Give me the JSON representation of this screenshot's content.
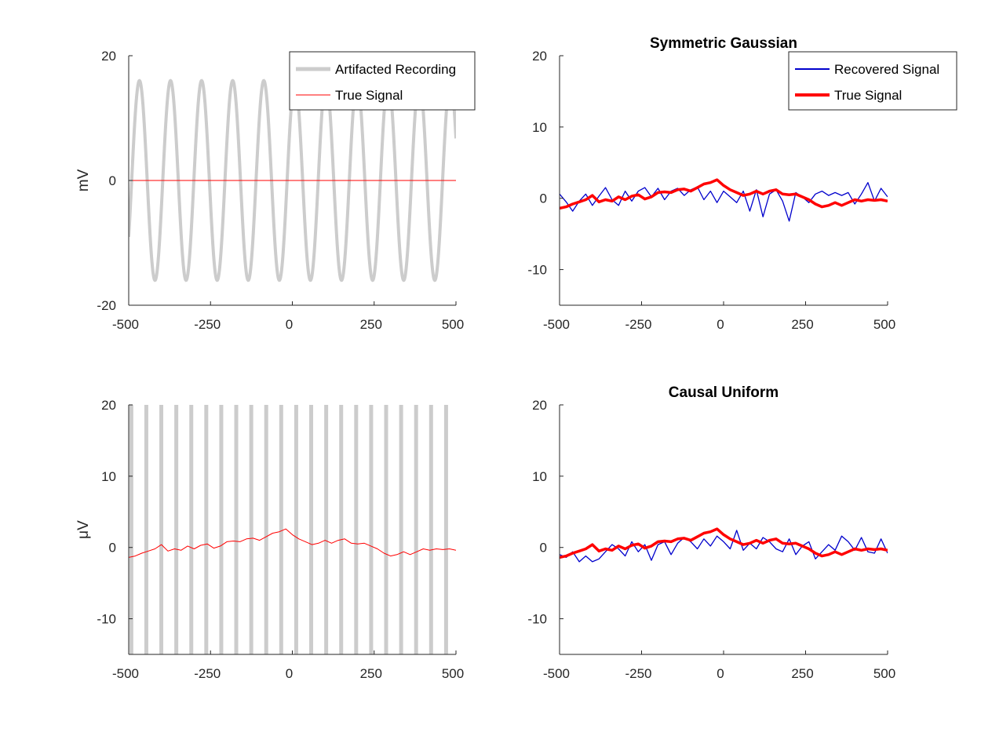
{
  "chart_data": [
    {
      "type": "line",
      "title": "",
      "ylabel": "mV",
      "xlim": [
        -500,
        500
      ],
      "ylim": [
        -20,
        20
      ],
      "xticks": [
        "-500",
        "-250",
        "0",
        "250",
        "500"
      ],
      "yticks": [
        "-20",
        "0",
        "20"
      ],
      "legend": "top-right",
      "series": [
        {
          "name": "Artifacted Recording",
          "color": "#cccccc",
          "kind": "sine",
          "amplitude": 16,
          "period": 95,
          "phase": -500
        },
        {
          "name": "True Signal",
          "color": "#ff0000",
          "kind": "flat",
          "value": 0
        }
      ]
    },
    {
      "type": "line",
      "title": "Symmetric Gaussian",
      "ylabel": "",
      "xlim": [
        -500,
        500
      ],
      "ylim": [
        -15,
        20
      ],
      "xticks": [
        "-500",
        "-250",
        "0",
        "250",
        "500"
      ],
      "yticks": [
        "-10",
        "0",
        "10",
        "20"
      ],
      "legend": "top-right",
      "series": [
        {
          "name": "Recovered Signal",
          "color": "#0000cc",
          "x": [
            -500,
            -480,
            -460,
            -440,
            -420,
            -400,
            -380,
            -360,
            -340,
            -320,
            -300,
            -280,
            -260,
            -240,
            -220,
            -200,
            -180,
            -160,
            -140,
            -120,
            -100,
            -80,
            -60,
            -40,
            -20,
            0,
            20,
            40,
            60,
            80,
            100,
            120,
            140,
            160,
            180,
            200,
            220,
            240,
            260,
            280,
            300,
            320,
            340,
            360,
            380,
            400,
            420,
            440,
            460,
            480,
            500
          ],
          "y": [
            0.6,
            -0.5,
            -1.8,
            -0.4,
            0.6,
            -1.0,
            0.3,
            1.5,
            -0.2,
            -1.0,
            1.0,
            -0.4,
            1.0,
            1.5,
            0.2,
            1.4,
            -0.2,
            1.0,
            1.4,
            0.4,
            1.2,
            1.6,
            -0.2,
            1.0,
            -0.6,
            1.0,
            0.2,
            -0.6,
            1.0,
            -1.8,
            1.2,
            -2.6,
            0.6,
            1.2,
            -0.4,
            -3.2,
            0.8,
            0.2,
            -0.6,
            0.6,
            1.0,
            0.4,
            0.8,
            0.4,
            0.8,
            -0.8,
            0.6,
            2.2,
            -0.4,
            1.4,
            0.2
          ]
        },
        {
          "name": "True Signal",
          "color": "#ff0000",
          "x": [
            -500,
            -480,
            -460,
            -440,
            -420,
            -400,
            -380,
            -360,
            -340,
            -320,
            -300,
            -280,
            -260,
            -240,
            -220,
            -200,
            -180,
            -160,
            -140,
            -120,
            -100,
            -80,
            -60,
            -40,
            -20,
            0,
            20,
            40,
            60,
            80,
            100,
            120,
            140,
            160,
            180,
            200,
            220,
            240,
            260,
            280,
            300,
            320,
            340,
            360,
            380,
            400,
            420,
            440,
            460,
            480,
            500
          ],
          "y": [
            -1.4,
            -1.2,
            -0.8,
            -0.5,
            -0.2,
            0.4,
            -0.5,
            -0.2,
            -0.4,
            0.2,
            -0.2,
            0.3,
            0.5,
            -0.1,
            0.2,
            0.8,
            0.9,
            0.8,
            1.2,
            1.3,
            1.0,
            1.5,
            2.0,
            2.2,
            2.6,
            1.8,
            1.2,
            0.8,
            0.4,
            0.6,
            1.0,
            0.6,
            1.0,
            1.2,
            0.6,
            0.5,
            0.6,
            0.2,
            -0.2,
            -0.8,
            -1.2,
            -1.0,
            -0.6,
            -1.0,
            -0.6,
            -0.2,
            -0.4,
            -0.2,
            -0.3,
            -0.2,
            -0.4
          ]
        }
      ]
    },
    {
      "type": "line",
      "title": "",
      "ylabel": "μV",
      "xlim": [
        -500,
        500
      ],
      "ylim": [
        -15,
        20
      ],
      "xticks": [
        "-500",
        "-250",
        "0",
        "250",
        "500"
      ],
      "yticks": [
        "-10",
        "0",
        "10",
        "20"
      ],
      "legend": "none",
      "series": [
        {
          "name": "Artifacted Recording",
          "color": "#cccccc",
          "kind": "spikes",
          "start": -492,
          "step": 45.8,
          "count": 22
        },
        {
          "name": "True Signal",
          "color": "#ff0000",
          "x": [
            -500,
            -480,
            -460,
            -440,
            -420,
            -400,
            -380,
            -360,
            -340,
            -320,
            -300,
            -280,
            -260,
            -240,
            -220,
            -200,
            -180,
            -160,
            -140,
            -120,
            -100,
            -80,
            -60,
            -40,
            -20,
            0,
            20,
            40,
            60,
            80,
            100,
            120,
            140,
            160,
            180,
            200,
            220,
            240,
            260,
            280,
            300,
            320,
            340,
            360,
            380,
            400,
            420,
            440,
            460,
            480,
            500
          ],
          "y": [
            -1.4,
            -1.2,
            -0.8,
            -0.5,
            -0.2,
            0.4,
            -0.5,
            -0.2,
            -0.4,
            0.2,
            -0.2,
            0.3,
            0.5,
            -0.1,
            0.2,
            0.8,
            0.9,
            0.8,
            1.2,
            1.3,
            1.0,
            1.5,
            2.0,
            2.2,
            2.6,
            1.8,
            1.2,
            0.8,
            0.4,
            0.6,
            1.0,
            0.6,
            1.0,
            1.2,
            0.6,
            0.5,
            0.6,
            0.2,
            -0.2,
            -0.8,
            -1.2,
            -1.0,
            -0.6,
            -1.0,
            -0.6,
            -0.2,
            -0.4,
            -0.2,
            -0.3,
            -0.2,
            -0.4
          ]
        }
      ]
    },
    {
      "type": "line",
      "title": "Causal Uniform",
      "ylabel": "",
      "xlim": [
        -500,
        500
      ],
      "ylim": [
        -15,
        20
      ],
      "xticks": [
        "-500",
        "-250",
        "0",
        "250",
        "500"
      ],
      "yticks": [
        "-10",
        "0",
        "10",
        "20"
      ],
      "legend": "none",
      "series": [
        {
          "name": "Recovered Signal",
          "color": "#0000cc",
          "x": [
            -500,
            -480,
            -460,
            -440,
            -420,
            -400,
            -380,
            -360,
            -340,
            -320,
            -300,
            -280,
            -260,
            -240,
            -220,
            -200,
            -180,
            -160,
            -140,
            -120,
            -100,
            -80,
            -60,
            -40,
            -20,
            0,
            20,
            40,
            60,
            80,
            100,
            120,
            140,
            160,
            180,
            200,
            220,
            240,
            260,
            280,
            300,
            320,
            340,
            360,
            380,
            400,
            420,
            440,
            460,
            480,
            500
          ],
          "y": [
            -1.0,
            -1.4,
            -0.6,
            -2.0,
            -1.2,
            -2.0,
            -1.6,
            -0.6,
            0.4,
            -0.2,
            -1.2,
            0.8,
            -0.6,
            0.4,
            -1.8,
            0.4,
            0.8,
            -1.0,
            0.6,
            1.4,
            0.8,
            -0.2,
            1.2,
            0.2,
            1.6,
            0.8,
            -0.2,
            2.4,
            -0.4,
            0.6,
            -0.2,
            1.4,
            0.8,
            -0.2,
            -0.6,
            1.2,
            -1.0,
            0.2,
            0.8,
            -1.6,
            -0.6,
            0.4,
            -0.4,
            1.6,
            0.8,
            -0.4,
            1.4,
            -0.6,
            -0.8,
            1.2,
            -0.8
          ]
        },
        {
          "name": "True Signal",
          "color": "#ff0000",
          "x": [
            -500,
            -480,
            -460,
            -440,
            -420,
            -400,
            -380,
            -360,
            -340,
            -320,
            -300,
            -280,
            -260,
            -240,
            -220,
            -200,
            -180,
            -160,
            -140,
            -120,
            -100,
            -80,
            -60,
            -40,
            -20,
            0,
            20,
            40,
            60,
            80,
            100,
            120,
            140,
            160,
            180,
            200,
            220,
            240,
            260,
            280,
            300,
            320,
            340,
            360,
            380,
            400,
            420,
            440,
            460,
            480,
            500
          ],
          "y": [
            -1.4,
            -1.2,
            -0.8,
            -0.5,
            -0.2,
            0.4,
            -0.5,
            -0.2,
            -0.4,
            0.2,
            -0.2,
            0.3,
            0.5,
            -0.1,
            0.2,
            0.8,
            0.9,
            0.8,
            1.2,
            1.3,
            1.0,
            1.5,
            2.0,
            2.2,
            2.6,
            1.8,
            1.2,
            0.8,
            0.4,
            0.6,
            1.0,
            0.6,
            1.0,
            1.2,
            0.6,
            0.5,
            0.6,
            0.2,
            -0.2,
            -0.8,
            -1.2,
            -1.0,
            -0.6,
            -1.0,
            -0.6,
            -0.2,
            -0.4,
            -0.2,
            -0.3,
            -0.2,
            -0.4
          ]
        }
      ]
    }
  ]
}
